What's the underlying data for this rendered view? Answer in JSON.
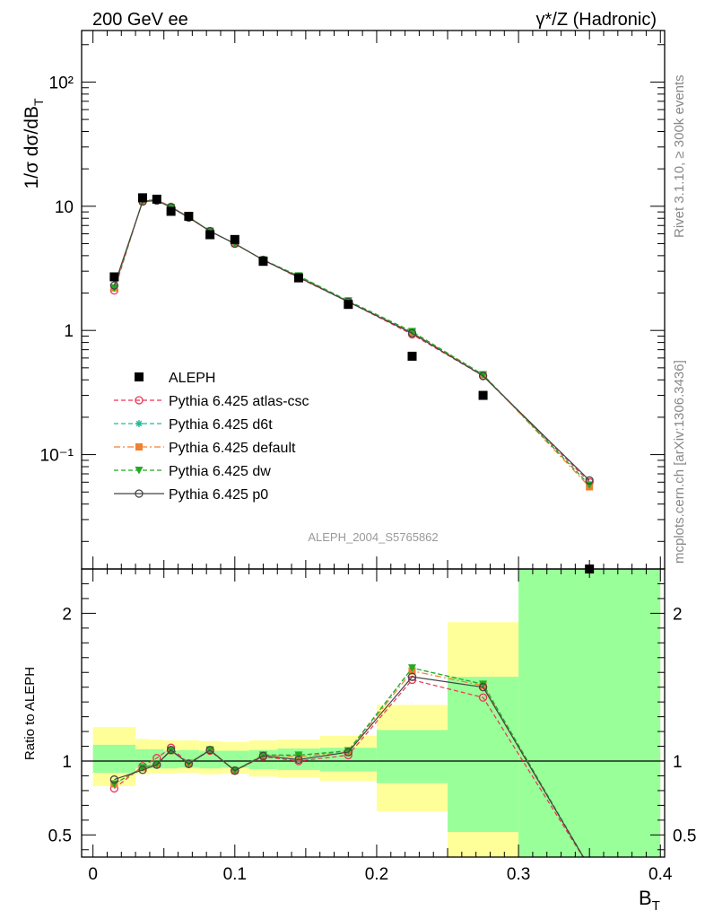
{
  "header": {
    "left": "200 GeV ee",
    "right": "γ*/Z (Hadronic)"
  },
  "side": {
    "rivet": "Rivet 3.1.10, ≥ 300k events",
    "mcplots": "mcplots.cern.ch [arXiv:1306.3436]"
  },
  "watermark": "ALEPH_2004_S5765862",
  "chart_data": [
    {
      "type": "scatter",
      "yscale": "log",
      "ylim": [
        0.012,
        260
      ],
      "xlim": [
        -0.008,
        0.403
      ],
      "ylabel": "1/σ dσ/dB",
      "ylabel_sub": "T",
      "y_ticks": [
        "10⁻¹",
        "1",
        "10",
        "10²"
      ],
      "legend_placement": "middle-left",
      "x": [
        0.015,
        0.035,
        0.045,
        0.055,
        0.0675,
        0.0825,
        0.1,
        0.12,
        0.145,
        0.18,
        0.225,
        0.275,
        0.35
      ],
      "data": {
        "name": "ALEPH",
        "color": "#000000",
        "values": [
          2.7,
          11.7,
          11.4,
          9.1,
          8.3,
          5.9,
          5.4,
          3.6,
          2.65,
          1.62,
          0.62,
          0.3,
          0.0115
        ]
      },
      "series": [
        {
          "name": "Pythia 6.425 atlas-csc",
          "color": "#ee3355",
          "dash": "5,3",
          "marker": "open-circle",
          "values": [
            2.1,
            11.1,
            11.3,
            9.9,
            8.2,
            6.3,
            5.0,
            3.7,
            2.65,
            1.7,
            0.93,
            0.43,
            0.06
          ]
        },
        {
          "name": "Pythia 6.425 d6t",
          "color": "#22bb99",
          "dash": "5,3",
          "marker": "star",
          "values": [
            2.2,
            11.0,
            11.2,
            9.8,
            8.2,
            6.3,
            5.0,
            3.7,
            2.75,
            1.72,
            0.97,
            0.44,
            0.057
          ]
        },
        {
          "name": "Pythia 6.425 default",
          "color": "#f08030",
          "dash": "7,3,2,3",
          "marker": "square",
          "values": [
            2.2,
            11.0,
            11.2,
            9.8,
            8.2,
            6.3,
            5.0,
            3.7,
            2.72,
            1.71,
            0.96,
            0.44,
            0.055
          ]
        },
        {
          "name": "Pythia 6.425 dw",
          "color": "#22aa22",
          "dash": "5,3",
          "marker": "triangle-down",
          "values": [
            2.2,
            11.0,
            11.2,
            9.8,
            8.2,
            6.3,
            5.0,
            3.7,
            2.75,
            1.73,
            0.98,
            0.44,
            0.057
          ]
        },
        {
          "name": "Pythia 6.425 p0",
          "color": "#444444",
          "dash": "",
          "marker": "open-circle",
          "values": [
            2.3,
            10.9,
            11.1,
            9.8,
            8.1,
            6.3,
            5.0,
            3.7,
            2.68,
            1.7,
            0.95,
            0.43,
            0.062
          ]
        }
      ]
    },
    {
      "type": "line",
      "ylim": [
        0.35,
        2.3
      ],
      "xlim": [
        -0.008,
        0.403
      ],
      "ylabel": "Ratio to ALEPH",
      "xlabel": "B",
      "xlabel_sub": "T",
      "x_ticks": [
        "0",
        "0.1",
        "0.2",
        "0.3",
        "0.4"
      ],
      "y_ticks": [
        "0.5",
        "1",
        "2"
      ],
      "bins": [
        0,
        0.03,
        0.04,
        0.05,
        0.06,
        0.075,
        0.09,
        0.11,
        0.13,
        0.16,
        0.2,
        0.25,
        0.3,
        0.4
      ],
      "band_inner": [
        [
          0.92,
          1.11
        ],
        [
          0.95,
          1.08
        ],
        [
          0.95,
          1.08
        ],
        [
          0.95,
          1.07
        ],
        [
          0.955,
          1.075
        ],
        [
          0.95,
          1.07
        ],
        [
          0.955,
          1.07
        ],
        [
          0.945,
          1.075
        ],
        [
          0.94,
          1.085
        ],
        [
          0.93,
          1.09
        ],
        [
          0.85,
          1.21
        ],
        [
          0.52,
          1.57
        ],
        [
          0.3,
          2.35
        ]
      ],
      "band_outer": [
        [
          0.83,
          1.23
        ],
        [
          0.91,
          1.15
        ],
        [
          0.915,
          1.145
        ],
        [
          0.915,
          1.14
        ],
        [
          0.92,
          1.14
        ],
        [
          0.91,
          1.135
        ],
        [
          0.915,
          1.13
        ],
        [
          0.895,
          1.14
        ],
        [
          0.89,
          1.145
        ],
        [
          0.865,
          1.17
        ],
        [
          0.66,
          1.38
        ],
        [
          0.33,
          1.94
        ],
        [
          0.3,
          2.35
        ]
      ],
      "x": [
        0.015,
        0.035,
        0.045,
        0.055,
        0.0675,
        0.0825,
        0.1,
        0.12,
        0.145,
        0.18,
        0.225,
        0.275,
        0.35
      ],
      "series": [
        {
          "name": "Pythia 6.425 atlas-csc",
          "values": [
            0.815,
            0.965,
            1.02,
            1.09,
            0.985,
            1.07,
            0.935,
            1.03,
            1.0,
            1.04,
            1.55,
            1.43,
            0.28
          ]
        },
        {
          "name": "Pythia 6.425 d6t",
          "values": [
            0.845,
            0.955,
            0.98,
            1.07,
            0.985,
            1.075,
            0.935,
            1.04,
            1.04,
            1.065,
            1.63,
            1.52,
            0.28
          ]
        },
        {
          "name": "Pythia 6.425 default",
          "values": [
            0.845,
            0.955,
            0.98,
            1.07,
            0.985,
            1.075,
            0.935,
            1.04,
            1.03,
            1.06,
            1.61,
            1.51,
            0.28
          ]
        },
        {
          "name": "Pythia 6.425 dw",
          "values": [
            0.845,
            0.955,
            0.98,
            1.07,
            0.985,
            1.075,
            0.935,
            1.04,
            1.04,
            1.07,
            1.63,
            1.52,
            0.28
          ]
        },
        {
          "name": "Pythia 6.425 p0",
          "values": [
            0.875,
            0.94,
            0.975,
            1.075,
            0.98,
            1.075,
            0.935,
            1.035,
            1.01,
            1.06,
            1.57,
            1.5,
            0.28
          ]
        }
      ]
    }
  ]
}
